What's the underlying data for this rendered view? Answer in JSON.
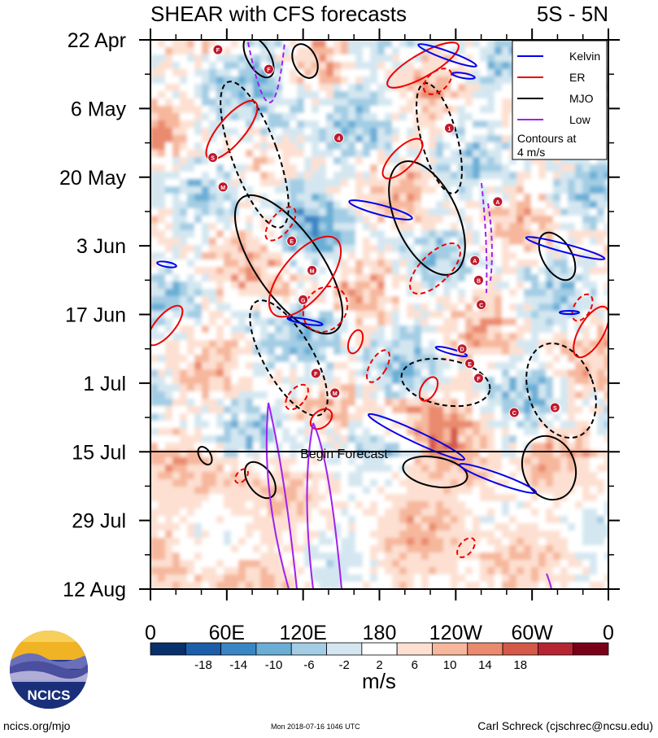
{
  "chart_data": {
    "type": "heatmap",
    "title": "SHEAR with CFS forecasts",
    "region_label": "5S - 5N",
    "y_ticks": [
      "22 Apr",
      "6 May",
      "20 May",
      "3 Jun",
      "17 Jun",
      "1 Jul",
      "15 Jul",
      "29 Jul",
      "12 Aug"
    ],
    "x_ticks": [
      "0",
      "60E",
      "120E",
      "180",
      "120W",
      "60W",
      "0"
    ],
    "x_range_deg": [
      0,
      360
    ],
    "time_range_days_from_22apr": [
      0,
      112
    ],
    "forecast_start": "15 Jul",
    "forecast_label": "Begin Forecast",
    "legend": {
      "items": [
        {
          "label": "Kelvin",
          "color": "#0000ee"
        },
        {
          "label": "ER",
          "color": "#ee0000"
        },
        {
          "label": "MJO",
          "color": "#000000"
        },
        {
          "label": "Low",
          "color": "#a020f0"
        }
      ],
      "note_line1": "Contours at",
      "note_line2": "4 m/s"
    },
    "colorbar": {
      "unit": "m/s",
      "tick_labels": [
        "-18",
        "-14",
        "-10",
        "-6",
        "-2",
        "2",
        "6",
        "10",
        "14",
        "18"
      ],
      "colors": [
        "#08306b",
        "#1c5ea8",
        "#3a86c4",
        "#6aaed6",
        "#a3cde4",
        "#d4e7f1",
        "#ffffff",
        "#fde0d2",
        "#f6b79c",
        "#ea8a6e",
        "#d55948",
        "#b72532",
        "#7a0019"
      ]
    },
    "storms": [
      {
        "label": "F",
        "lon": 53,
        "day": 2
      },
      {
        "label": "F",
        "lon": 93,
        "day": 6
      },
      {
        "label": "4",
        "lon": 148,
        "day": 20
      },
      {
        "label": "S",
        "lon": 49,
        "day": 24
      },
      {
        "label": "M",
        "lon": 57,
        "day": 30
      },
      {
        "label": "1",
        "lon": 235,
        "day": 18
      },
      {
        "label": "A",
        "lon": 273,
        "day": 33
      },
      {
        "label": "E",
        "lon": 111,
        "day": 41
      },
      {
        "label": "M",
        "lon": 127,
        "day": 47
      },
      {
        "label": "G",
        "lon": 120,
        "day": 53
      },
      {
        "label": "A",
        "lon": 255,
        "day": 45
      },
      {
        "label": "B",
        "lon": 258,
        "day": 49
      },
      {
        "label": "C",
        "lon": 260,
        "day": 54
      },
      {
        "label": "D",
        "lon": 245,
        "day": 63
      },
      {
        "label": "E",
        "lon": 251,
        "day": 66
      },
      {
        "label": "F",
        "lon": 258,
        "day": 69
      },
      {
        "label": "F",
        "lon": 130,
        "day": 68
      },
      {
        "label": "M",
        "lon": 145,
        "day": 72
      },
      {
        "label": "C",
        "lon": 286,
        "day": 76
      },
      {
        "label": "S",
        "lon": 318,
        "day": 75
      }
    ]
  },
  "footer": {
    "site": "ncics.org/mjo",
    "timestamp": "Mon 2018-07-16 1046 UTC",
    "author": "Carl Schreck (cjschrec@ncsu.edu)",
    "logo_text": "NCICS"
  }
}
